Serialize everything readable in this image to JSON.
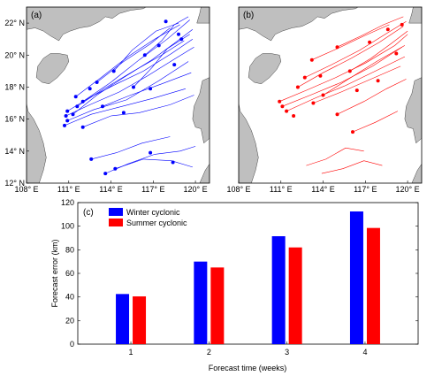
{
  "colors": {
    "winter": "#0000ff",
    "summer": "#ff0000",
    "land": "#bfbfbf",
    "coast": "#444444",
    "frame": "#000000"
  },
  "maps": {
    "lon_ticks": [
      "108° E",
      "111° E",
      "114° E",
      "117° E",
      "120° E"
    ],
    "lat_ticks": [
      "12° N",
      "14° N",
      "16° N",
      "18° N",
      "20° N",
      "22° N"
    ],
    "lon_range": [
      108,
      121
    ],
    "lat_range": [
      12,
      23
    ],
    "panels": [
      {
        "label": "(a)",
        "series": "winter",
        "tracks": [
          [
            [
              110.8,
              16.2
            ],
            [
              112.5,
              16.9
            ],
            [
              114.6,
              17.7
            ],
            [
              116.6,
              18.7
            ],
            [
              118.6,
              19.8
            ],
            [
              119.9,
              20.5
            ]
          ],
          [
            [
              110.9,
              15.9
            ],
            [
              112.8,
              16.6
            ],
            [
              115.1,
              17.2
            ],
            [
              117.4,
              18.4
            ],
            [
              119.5,
              19.6
            ]
          ],
          [
            [
              111.3,
              16.3
            ],
            [
              113.0,
              17.5
            ],
            [
              114.9,
              18.6
            ],
            [
              116.9,
              19.7
            ],
            [
              118.6,
              20.8
            ],
            [
              119.8,
              21.6
            ]
          ],
          [
            [
              111.6,
              16.8
            ],
            [
              113.5,
              17.9
            ],
            [
              115.6,
              19.0
            ],
            [
              117.6,
              20.0
            ],
            [
              119.2,
              20.9
            ]
          ],
          [
            [
              112.0,
              17.1
            ],
            [
              114.0,
              18.3
            ],
            [
              116.0,
              19.7
            ],
            [
              118.0,
              21.0
            ],
            [
              119.6,
              22.2
            ]
          ],
          [
            [
              110.9,
              16.5
            ],
            [
              112.6,
              17.4
            ],
            [
              114.4,
              18.2
            ],
            [
              116.3,
              19.0
            ],
            [
              118.3,
              20.1
            ],
            [
              119.8,
              21.0
            ]
          ],
          [
            [
              111.5,
              17.4
            ],
            [
              113.3,
              18.6
            ],
            [
              115.2,
              19.9
            ],
            [
              117.1,
              21.0
            ],
            [
              118.9,
              21.9
            ]
          ],
          [
            [
              113.0,
              18.3
            ],
            [
              114.9,
              19.6
            ],
            [
              116.8,
              20.7
            ],
            [
              118.2,
              21.7
            ]
          ],
          [
            [
              114.2,
              19.0
            ],
            [
              115.5,
              20.3
            ],
            [
              117.2,
              21.5
            ],
            [
              118.8,
              22.0
            ]
          ],
          [
            [
              110.7,
              15.6
            ],
            [
              112.6,
              16.3
            ],
            [
              114.8,
              16.8
            ],
            [
              117.0,
              17.3
            ],
            [
              119.3,
              17.9
            ]
          ],
          [
            [
              112.0,
              15.5
            ],
            [
              114.0,
              16.2
            ],
            [
              116.0,
              16.4
            ],
            [
              118.2,
              16.9
            ],
            [
              119.9,
              17.5
            ]
          ],
          [
            [
              113.4,
              16.8
            ],
            [
              115.4,
              17.5
            ],
            [
              117.6,
              18.2
            ],
            [
              119.7,
              18.9
            ]
          ],
          [
            [
              115.6,
              18.0
            ],
            [
              116.9,
              19.2
            ],
            [
              118.0,
              20.4
            ],
            [
              119.6,
              21.3
            ]
          ],
          [
            [
              116.4,
              20.0
            ],
            [
              117.6,
              20.9
            ],
            [
              118.5,
              21.9
            ],
            [
              119.5,
              22.4
            ]
          ],
          [
            [
              113.6,
              12.6
            ],
            [
              115.2,
              13.2
            ],
            [
              117.1,
              13.8
            ],
            [
              118.9,
              14.0
            ],
            [
              120.0,
              14.3
            ]
          ],
          [
            [
              112.6,
              13.5
            ],
            [
              114.4,
              13.9
            ],
            [
              116.2,
              14.5
            ],
            [
              118.2,
              14.9
            ]
          ],
          [
            [
              114.3,
              12.9
            ],
            [
              116.3,
              13.5
            ],
            [
              118.3,
              13.4
            ],
            [
              119.8,
              13.0
            ]
          ]
        ],
        "dots": [
          [
            110.8,
            16.2
          ],
          [
            110.9,
            15.9
          ],
          [
            111.3,
            16.3
          ],
          [
            111.6,
            16.8
          ],
          [
            112.0,
            17.1
          ],
          [
            110.9,
            16.5
          ],
          [
            111.5,
            17.4
          ],
          [
            113.0,
            18.3
          ],
          [
            114.2,
            19.0
          ],
          [
            110.7,
            15.6
          ],
          [
            112.0,
            15.5
          ],
          [
            113.4,
            16.8
          ],
          [
            115.6,
            18.0
          ],
          [
            116.4,
            20.0
          ],
          [
            117.4,
            20.6
          ],
          [
            118.8,
            21.3
          ],
          [
            116.8,
            17.9
          ],
          [
            118.5,
            19.4
          ],
          [
            119.0,
            21.0
          ],
          [
            117.9,
            22.1
          ],
          [
            113.6,
            12.6
          ],
          [
            112.6,
            13.5
          ],
          [
            114.3,
            12.9
          ],
          [
            116.8,
            13.9
          ],
          [
            118.4,
            13.3
          ],
          [
            112.5,
            17.9
          ],
          [
            114.9,
            16.4
          ]
        ]
      },
      {
        "label": "(b)",
        "series": "summer",
        "tracks": [
          [
            [
              110.9,
              17.1
            ],
            [
              112.8,
              17.8
            ],
            [
              114.9,
              18.6
            ],
            [
              117.0,
              19.5
            ],
            [
              119.1,
              20.6
            ],
            [
              120.0,
              21.3
            ]
          ],
          [
            [
              111.1,
              16.8
            ],
            [
              113.1,
              17.5
            ],
            [
              115.3,
              18.3
            ],
            [
              117.5,
              19.3
            ],
            [
              119.6,
              20.5
            ]
          ],
          [
            [
              111.4,
              16.5
            ],
            [
              113.4,
              17.3
            ],
            [
              115.6,
              18.1
            ],
            [
              117.7,
              19.0
            ],
            [
              119.8,
              19.9
            ]
          ],
          [
            [
              112.2,
              18.0
            ],
            [
              114.0,
              18.9
            ],
            [
              116.0,
              19.8
            ],
            [
              118.0,
              20.8
            ],
            [
              119.7,
              21.8
            ]
          ],
          [
            [
              112.7,
              18.6
            ],
            [
              114.6,
              19.4
            ],
            [
              116.6,
              20.3
            ],
            [
              118.6,
              21.4
            ],
            [
              119.9,
              22.1
            ]
          ],
          [
            [
              113.3,
              17.0
            ],
            [
              115.3,
              17.7
            ],
            [
              117.4,
              18.5
            ],
            [
              119.5,
              19.3
            ]
          ],
          [
            [
              114.0,
              17.5
            ],
            [
              115.8,
              18.5
            ],
            [
              117.8,
              19.6
            ],
            [
              119.8,
              20.6
            ]
          ],
          [
            [
              113.2,
              19.7
            ],
            [
              115.0,
              20.4
            ],
            [
              116.9,
              21.2
            ],
            [
              118.7,
              21.9
            ]
          ],
          [
            [
              115.0,
              20.5
            ],
            [
              116.7,
              21.2
            ],
            [
              118.3,
              21.9
            ],
            [
              119.7,
              22.4
            ]
          ],
          [
            [
              115.9,
              19.0
            ],
            [
              117.4,
              19.8
            ],
            [
              118.8,
              20.7
            ],
            [
              120.0,
              21.5
            ]
          ],
          [
            [
              115.0,
              16.3
            ],
            [
              116.9,
              17.1
            ],
            [
              118.5,
              17.9
            ],
            [
              119.9,
              18.5
            ]
          ],
          [
            [
              116.1,
              15.2
            ],
            [
              117.7,
              15.8
            ],
            [
              119.3,
              16.5
            ]
          ],
          [
            [
              112.8,
              13.1
            ],
            [
              114.2,
              13.5
            ],
            [
              115.6,
              14.2
            ],
            [
              116.9,
              14.0
            ]
          ],
          [
            [
              113.9,
              12.6
            ],
            [
              115.4,
              12.9
            ],
            [
              116.9,
              13.4
            ],
            [
              118.2,
              13.1
            ]
          ]
        ],
        "dots": [
          [
            110.9,
            17.1
          ],
          [
            111.1,
            16.8
          ],
          [
            111.4,
            16.5
          ],
          [
            112.2,
            18.0
          ],
          [
            112.7,
            18.6
          ],
          [
            113.3,
            17.0
          ],
          [
            114.0,
            17.5
          ],
          [
            113.2,
            19.7
          ],
          [
            115.0,
            20.5
          ],
          [
            115.9,
            19.0
          ],
          [
            115.0,
            16.3
          ],
          [
            116.1,
            15.2
          ],
          [
            117.3,
            20.8
          ],
          [
            118.6,
            21.6
          ],
          [
            119.2,
            20.1
          ],
          [
            117.9,
            18.4
          ],
          [
            119.6,
            21.9
          ],
          [
            116.4,
            17.8
          ],
          [
            113.8,
            18.7
          ],
          [
            111.9,
            16.2
          ]
        ]
      }
    ]
  },
  "chart_data": {
    "type": "bar",
    "panel_label": "(c)",
    "categories": [
      "1",
      "2",
      "3",
      "4"
    ],
    "series": [
      {
        "name": "Winter cyclonic",
        "values": [
          42.5,
          70,
          91.5,
          112.5
        ]
      },
      {
        "name": "Summer cyclonic",
        "values": [
          40.5,
          65,
          82,
          98.5
        ]
      }
    ],
    "xlabel": "Forecast time (weeks)",
    "ylabel": "Forecast error (km)",
    "ylim": [
      0,
      120
    ],
    "yticks": [
      "0",
      "20",
      "40",
      "60",
      "80",
      "100",
      "120"
    ],
    "grid": false,
    "legend_position": "top-left"
  }
}
